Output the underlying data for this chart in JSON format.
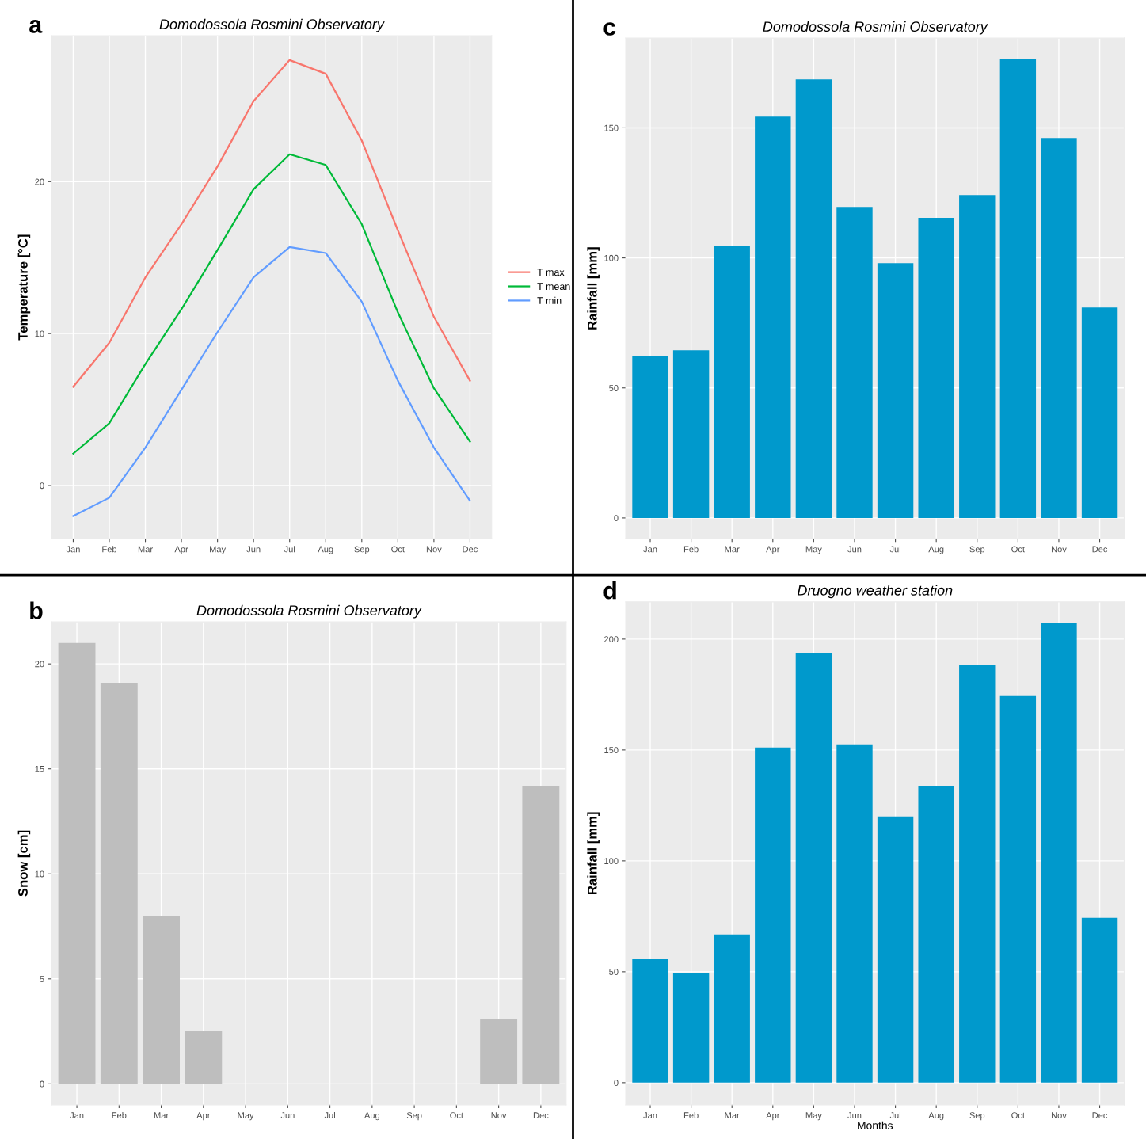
{
  "chart_data": [
    {
      "type": "line",
      "title": "Domodossola Rosmini Observatory",
      "ylabel": "Temperature [°C]",
      "annotations": [
        "a"
      ],
      "categories": [
        "Jan",
        "Feb",
        "Mar",
        "Apr",
        "May",
        "Jun",
        "Jul",
        "Aug",
        "Sep",
        "Oct",
        "Nov",
        "Dec"
      ],
      "ylim": [
        -3.5,
        29.6
      ],
      "yticks": [
        0,
        10,
        20
      ],
      "grid": true,
      "legend": "right",
      "series": [
        {
          "name": "T max",
          "color": "#f8766d",
          "values": [
            6.5,
            9.4,
            13.7,
            17.2,
            21.0,
            25.3,
            28.0,
            27.1,
            22.7,
            16.8,
            11.1,
            6.9
          ]
        },
        {
          "name": "T mean",
          "color": "#00ba38",
          "values": [
            2.1,
            4.1,
            8.0,
            11.6,
            15.5,
            19.5,
            21.8,
            21.1,
            17.2,
            11.4,
            6.4,
            2.9
          ]
        },
        {
          "name": "T min",
          "color": "#619cff",
          "values": [
            -2.0,
            -0.8,
            2.5,
            6.3,
            10.1,
            13.7,
            15.7,
            15.3,
            12.1,
            6.9,
            2.5,
            -1.0
          ]
        }
      ]
    },
    {
      "type": "bar",
      "title": "Domodossola Rosmini Observatory",
      "ylabel": "Rainfall [mm]",
      "annotations": [
        "c"
      ],
      "categories": [
        "Jan",
        "Feb",
        "Mar",
        "Apr",
        "May",
        "Jun",
        "Jul",
        "Aug",
        "Sep",
        "Oct",
        "Nov",
        "Dec"
      ],
      "ylim": [
        -8,
        184.5
      ],
      "yticks": [
        0,
        50,
        100,
        150
      ],
      "grid": true,
      "series": [
        {
          "color": "#0099cc",
          "values": [
            62.4,
            64.5,
            104.6,
            154.3,
            168.6,
            119.6,
            98.0,
            115.4,
            124.2,
            176.5,
            146.1,
            80.9
          ]
        }
      ]
    },
    {
      "type": "bar",
      "title": "Domodossola Rosmini Observatory",
      "ylabel": "Snow [cm]",
      "annotations": [
        "b"
      ],
      "categories": [
        "Jan",
        "Feb",
        "Mar",
        "Apr",
        "May",
        "Jun",
        "Jul",
        "Aug",
        "Sep",
        "Oct",
        "Nov",
        "Dec"
      ],
      "ylim": [
        -1,
        22
      ],
      "yticks": [
        0,
        5,
        10,
        15,
        20
      ],
      "grid": true,
      "series": [
        {
          "color": "#bebebe",
          "values": [
            21.0,
            19.1,
            8.0,
            2.5,
            0,
            0,
            0,
            0,
            0,
            0,
            3.1,
            14.2
          ]
        }
      ]
    },
    {
      "type": "bar",
      "title": "Druogno weather station",
      "ylabel": "Rainfall [mm]",
      "xlabel": "Months",
      "annotations": [
        "d"
      ],
      "categories": [
        "Jan",
        "Feb",
        "Mar",
        "Apr",
        "May",
        "Jun",
        "Jul",
        "Aug",
        "Sep",
        "Oct",
        "Nov",
        "Dec"
      ],
      "ylim": [
        -10,
        216.8
      ],
      "yticks": [
        0,
        50,
        100,
        150,
        200
      ],
      "grid": true,
      "series": [
        {
          "color": "#0099cc",
          "values": [
            55.7,
            49.3,
            66.8,
            151.1,
            193.6,
            152.5,
            120.0,
            133.9,
            188.2,
            174.3,
            207.1,
            74.3
          ]
        }
      ]
    }
  ]
}
